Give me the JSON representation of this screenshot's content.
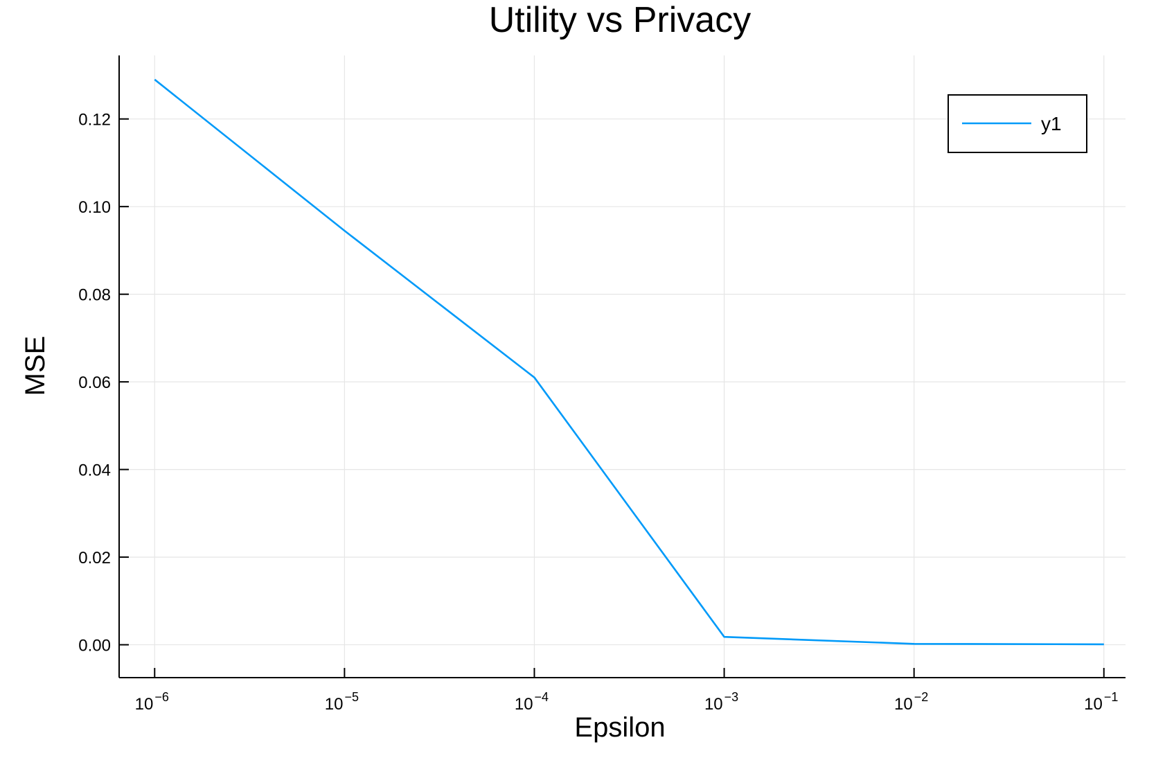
{
  "chart_data": {
    "type": "line",
    "title": "Utility vs Privacy",
    "xlabel": "Epsilon",
    "ylabel": "MSE",
    "xscale": "log",
    "x_tick_labels": [
      {
        "base": "10",
        "exp": "−6"
      },
      {
        "base": "10",
        "exp": "−5"
      },
      {
        "base": "10",
        "exp": "−4"
      },
      {
        "base": "10",
        "exp": "−3"
      },
      {
        "base": "10",
        "exp": "−2"
      },
      {
        "base": "10",
        "exp": "−1"
      }
    ],
    "x_ticks": [
      1e-06,
      1e-05,
      0.0001,
      0.001,
      0.01,
      0.1
    ],
    "y_ticks": [
      0.0,
      0.02,
      0.04,
      0.06,
      0.08,
      0.1,
      0.12
    ],
    "y_tick_labels": [
      "0.00",
      "0.02",
      "0.04",
      "0.06",
      "0.08",
      "0.10",
      "0.12"
    ],
    "xlim": [
      6.5e-07,
      0.13
    ],
    "ylim": [
      -0.0075,
      0.1345
    ],
    "grid": true,
    "legend_position": "top-right",
    "series": [
      {
        "name": "y1",
        "color": "#009af9",
        "x": [
          1e-06,
          1e-05,
          0.0001,
          0.001,
          0.01,
          0.1
        ],
        "y": [
          0.129,
          0.0945,
          0.061,
          0.0018,
          0.0002,
          0.0001
        ]
      }
    ]
  }
}
